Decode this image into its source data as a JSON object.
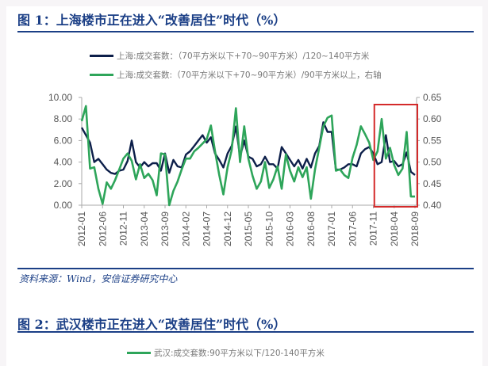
{
  "figure1": {
    "title": "图 1：上海楼市正在进入“改善居住”时代（%）",
    "source": "资料来源：Wind，安信证券研究中心"
  },
  "figure2": {
    "title": "图 2：武汉楼市正在进入“改善居住”时代（%）",
    "legend": "武汉:成交套数:90平方米以下/120-140平方米",
    "legend_color": "#2ea55a"
  },
  "chart_data": {
    "type": "line",
    "title": "图 1：上海楼市正在进入“改善居住”时代（%）",
    "x_start": "2012-01",
    "x_end": "2018-09",
    "frequency": "monthly",
    "x_tick_labels": [
      "2012-01",
      "2012-06",
      "2012-11",
      "2013-04",
      "2013-09",
      "2014-02",
      "2014-07",
      "2014-12",
      "2015-05",
      "2015-10",
      "2016-03",
      "2016-08",
      "2017-01",
      "2017-06",
      "2017-11",
      "2018-04",
      "2018-09"
    ],
    "y_left": {
      "ylim": [
        0,
        10
      ],
      "ticks": [
        "0.00",
        "2.00",
        "4.00",
        "6.00",
        "8.00",
        "10.00"
      ]
    },
    "y_right": {
      "ylim": [
        0.4,
        0.65
      ],
      "ticks": [
        "0.40",
        "0.45",
        "0.50",
        "0.55",
        "0.60",
        "0.65"
      ]
    },
    "highlight": {
      "from": "2017-12",
      "to": "2018-09",
      "color": "#d42a2a"
    },
    "legend_position": "top-center",
    "series": [
      {
        "name": "上海:成交套数：（70平方米以下+70~90平方米）/120~140平方米",
        "axis": "left",
        "color": "#0d1f4a",
        "values": [
          7.2,
          6.5,
          5.8,
          4.0,
          4.3,
          3.8,
          3.3,
          3.0,
          2.9,
          3.2,
          3.3,
          4.1,
          6.0,
          4.0,
          3.5,
          4.0,
          3.6,
          3.9,
          3.9,
          3.2,
          4.8,
          3.0,
          4.2,
          3.6,
          3.5,
          4.7,
          5.0,
          5.5,
          6.0,
          6.5,
          5.8,
          6.3,
          4.8,
          4.2,
          3.5,
          4.8,
          5.5,
          7.3,
          4.5,
          6.0,
          4.5,
          4.3,
          3.6,
          3.8,
          4.5,
          3.8,
          3.8,
          3.4,
          5.4,
          4.8,
          4.2,
          3.6,
          4.2,
          3.4,
          4.3,
          3.5,
          4.8,
          5.5,
          7.7,
          6.8,
          6.8,
          3.3,
          3.3,
          3.5,
          3.8,
          3.8,
          3.6,
          4.8,
          5.2,
          5.4,
          4.8,
          3.8,
          4.0,
          6.5,
          4.0,
          4.1,
          3.6,
          3.8,
          4.9,
          3.1,
          2.8
        ]
      },
      {
        "name": "上海:成交套数:（70平方米以下+70~90平方米）/90平方米以上，右轴",
        "axis": "right",
        "color": "#2ea55a",
        "values": [
          0.595,
          0.63,
          0.485,
          0.488,
          0.438,
          0.403,
          0.453,
          0.438,
          0.458,
          0.483,
          0.508,
          0.52,
          0.503,
          0.46,
          0.495,
          0.463,
          0.473,
          0.458,
          0.423,
          0.52,
          0.518,
          0.4,
          0.433,
          0.455,
          0.483,
          0.508,
          0.508,
          0.525,
          0.533,
          0.543,
          0.553,
          0.585,
          0.525,
          0.47,
          0.425,
          0.488,
          0.528,
          0.625,
          0.5,
          0.583,
          0.508,
          0.468,
          0.438,
          0.455,
          0.5,
          0.44,
          0.46,
          0.49,
          0.438,
          0.518,
          0.48,
          0.455,
          0.488,
          0.465,
          0.488,
          0.415,
          0.483,
          0.533,
          0.583,
          0.603,
          0.608,
          0.48,
          0.483,
          0.47,
          0.463,
          0.51,
          0.54,
          0.583,
          0.565,
          0.545,
          0.505,
          0.525,
          0.6,
          0.508,
          0.533,
          0.493,
          0.47,
          0.485,
          0.57,
          0.42,
          0.42
        ]
      }
    ]
  }
}
